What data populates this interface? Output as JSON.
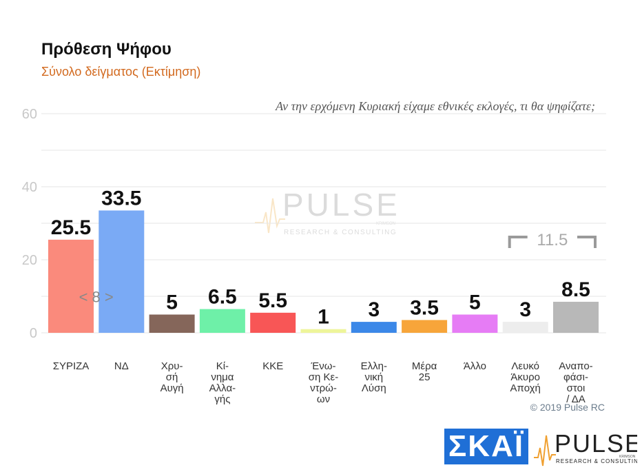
{
  "header": {
    "title": "Πρόθεση Ψήφου",
    "subtitle": "Σύνολο δείγματος   (Εκτίμηση)",
    "question": "Αν την ερχόμενη Κυριακή είχαμε εθνικές εκλογές, τι θα ψηφίζατε;"
  },
  "chart_data": {
    "type": "bar",
    "categories": [
      "ΣΥΡΙΖΑ",
      "ΝΔ",
      "Χρυσή Αυγή",
      "Κίνημα Αλλαγής",
      "ΚΚΕ",
      "Ένωση Κεντρώων",
      "Ελληνική Λύση",
      "Μέρα 25",
      "Άλλο",
      "Λευκό Άκυρο Αποχή",
      "Αναποφάσιστοι / ΔΑ"
    ],
    "category_lines": [
      [
        "ΣΥΡΙΖΑ"
      ],
      [
        "ΝΔ"
      ],
      [
        "Χρυ-",
        "σή",
        "Αυγή"
      ],
      [
        "Κί-",
        "νημα",
        "Αλλα-",
        "γής"
      ],
      [
        "ΚΚΕ"
      ],
      [
        "Ένω-",
        "ση Κε-",
        "ντρώ-",
        "ων"
      ],
      [
        "Ελλη-",
        "νική",
        "Λύση"
      ],
      [
        "Μέρα",
        "25"
      ],
      [
        "Άλλο"
      ],
      [
        "Λευκό",
        "Άκυρο",
        "Αποχή"
      ],
      [
        "Αναπο-",
        "φάσι-",
        "στοι",
        "/ ΔΑ"
      ]
    ],
    "values": [
      25.5,
      33.5,
      5,
      6.5,
      5.5,
      1,
      3,
      3.5,
      5,
      3,
      8.5
    ],
    "value_labels": [
      "25.5",
      "33.5",
      "5",
      "6.5",
      "5.5",
      "1",
      "3",
      "3.5",
      "5",
      "3",
      "8.5"
    ],
    "colors": [
      "#fa8a7c",
      "#7aaaf5",
      "#85665a",
      "#6ef0a8",
      "#f85656",
      "#eef59a",
      "#3b88e8",
      "#f7a53a",
      "#e67cf5",
      "#ededed",
      "#b8b8b8"
    ],
    "ylim": [
      0,
      60
    ],
    "yticks": [
      "0",
      "20",
      "40",
      "60"
    ],
    "grid": true,
    "annotations": {
      "gap_label": "< 8 >",
      "bracket_label": "11.5"
    }
  },
  "footer": {
    "copyright": "© 2019 Pulse RC",
    "skai_logo": "ΣΚΑΪ",
    "pulse_logo": "PULSE",
    "pulse_sub": "RESEARCH & CONSULTING",
    "pulse_tag": "KRIMSON"
  },
  "watermark": {
    "text": "PULSE",
    "sub": "RESEARCH & CONSULTING",
    "tag": "KRIMSON"
  }
}
